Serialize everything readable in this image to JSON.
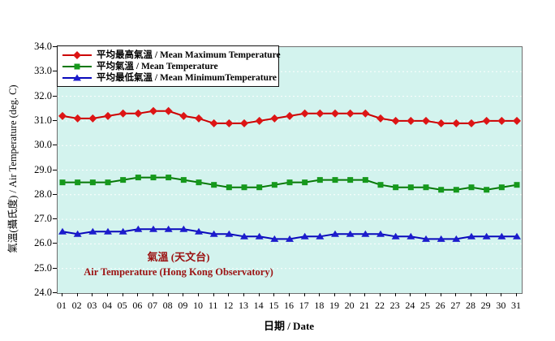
{
  "figure": {
    "background": "#ffffff",
    "plot_background": "#d3f3ee",
    "plot_border_color": "#6f6f6f",
    "gridline_color": "#ffffff",
    "annotation": {
      "line1": "氣溫 (天文台)",
      "line2": "Air Temperature (Hong Kong Observatory)",
      "color": "#9b1212"
    },
    "y_axis": {
      "title": "氣溫(攝氏度) / Air Temperature (deg. C)",
      "tick_labels": [
        "34.0",
        "33.0",
        "32.0",
        "31.0",
        "30.0",
        "29.0",
        "28.0",
        "27.0",
        "26.0",
        "25.0",
        "24.0"
      ]
    },
    "x_axis": {
      "title": "日期 / Date",
      "tick_labels": [
        "01",
        "02",
        "03",
        "04",
        "05",
        "06",
        "07",
        "08",
        "09",
        "10",
        "11",
        "12",
        "13",
        "14",
        "15",
        "16",
        "17",
        "18",
        "19",
        "20",
        "21",
        "22",
        "23",
        "24",
        "25",
        "26",
        "27",
        "28",
        "29",
        "30",
        "31"
      ]
    }
  },
  "chart_data": {
    "type": "line",
    "title": "氣溫 (天文台) / Air Temperature (Hong Kong Observatory)",
    "xlabel": "日期 / Date",
    "ylabel": "氣溫(攝氏度) / Air Temperature (deg. C)",
    "ylim": [
      24.0,
      34.0
    ],
    "grid": true,
    "legend_position": "top-left",
    "categories": [
      "01",
      "02",
      "03",
      "04",
      "05",
      "06",
      "07",
      "08",
      "09",
      "10",
      "11",
      "12",
      "13",
      "14",
      "15",
      "16",
      "17",
      "18",
      "19",
      "20",
      "21",
      "22",
      "23",
      "24",
      "25",
      "26",
      "27",
      "28",
      "29",
      "30",
      "31"
    ],
    "series": [
      {
        "name": "平均最高氣溫 / Mean Maximum Temperature",
        "marker": "diamond",
        "line_color": "#cc0000",
        "marker_color": "#dd1515",
        "values": [
          31.2,
          31.1,
          31.1,
          31.2,
          31.3,
          31.3,
          31.4,
          31.4,
          31.2,
          31.1,
          30.9,
          30.9,
          30.9,
          31.0,
          31.1,
          31.2,
          31.3,
          31.3,
          31.3,
          31.3,
          31.3,
          31.1,
          31.0,
          31.0,
          31.0,
          30.9,
          30.9,
          30.9,
          31.0,
          31.0,
          31.0
        ]
      },
      {
        "name": "平均氣溫 / Mean Temperature",
        "marker": "square",
        "line_color": "#067806",
        "marker_color": "#15991c",
        "values": [
          28.5,
          28.5,
          28.5,
          28.5,
          28.6,
          28.7,
          28.7,
          28.7,
          28.6,
          28.5,
          28.4,
          28.3,
          28.3,
          28.3,
          28.4,
          28.5,
          28.5,
          28.6,
          28.6,
          28.6,
          28.6,
          28.4,
          28.3,
          28.3,
          28.3,
          28.2,
          28.2,
          28.3,
          28.2,
          28.3,
          28.4
        ]
      },
      {
        "name": "平均最低氣溫 / Mean MinimumTemperature",
        "marker": "triangle",
        "line_color": "#0909bb",
        "marker_color": "#1c1ccd",
        "values": [
          26.5,
          26.4,
          26.5,
          26.5,
          26.5,
          26.6,
          26.6,
          26.6,
          26.6,
          26.5,
          26.4,
          26.4,
          26.3,
          26.3,
          26.2,
          26.2,
          26.3,
          26.3,
          26.4,
          26.4,
          26.4,
          26.4,
          26.3,
          26.3,
          26.2,
          26.2,
          26.2,
          26.3,
          26.3,
          26.3,
          26.3
        ]
      }
    ]
  }
}
